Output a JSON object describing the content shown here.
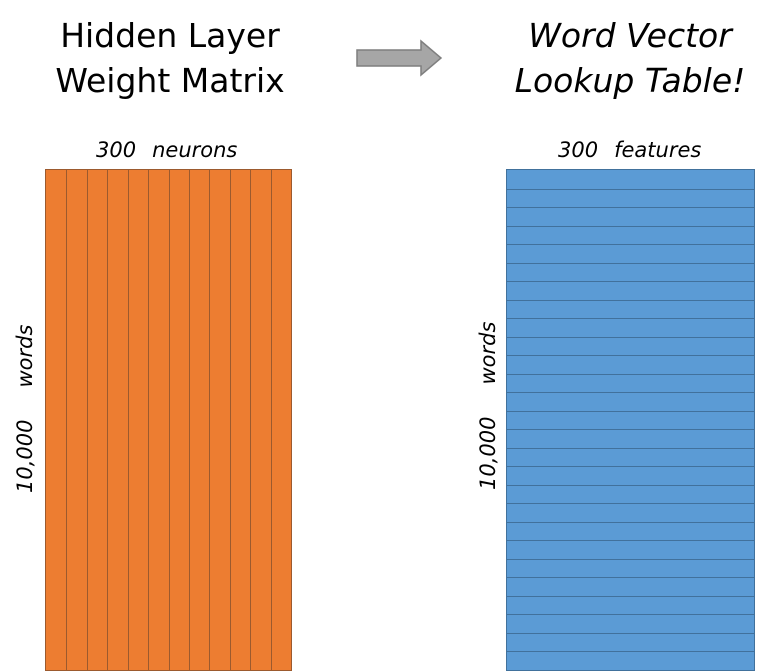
{
  "left_title": [
    "Hidden Layer",
    "Weight Matrix"
  ],
  "right_title": [
    "Word Vector",
    "Lookup Table!"
  ],
  "weight_matrix": {
    "columns_label": {
      "count": "300",
      "unit": "neurons"
    },
    "rows_label": {
      "count": "10,000",
      "unit": "words"
    },
    "color": "#ed7d31",
    "divider_color": "#9c5a2e",
    "column_divisions": 12
  },
  "lookup_table": {
    "columns_label": {
      "count": "300",
      "unit": "features"
    },
    "rows_label": {
      "count": "10,000",
      "unit": "words"
    },
    "color": "#5b9bd5",
    "divider_color": "#41719c",
    "row_divisions": 27
  },
  "arrow": {
    "icon": "right-arrow-icon",
    "color": "#a6a6a6"
  }
}
